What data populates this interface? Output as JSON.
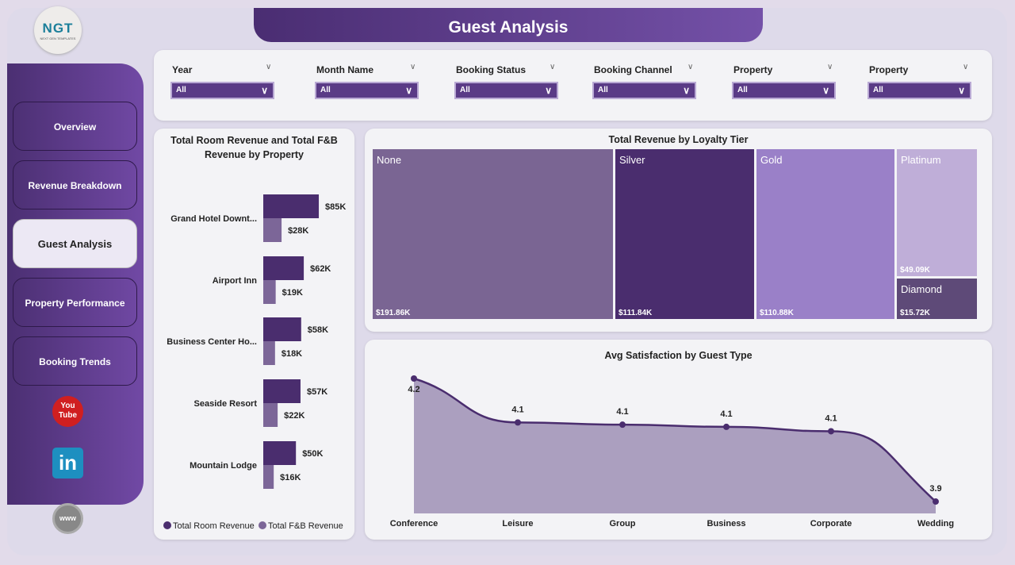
{
  "header": {
    "title": "Guest Analysis",
    "logo_text": "NGT",
    "logo_sub": "NEXT GEN TEMPLATES"
  },
  "sidebar": {
    "items": [
      {
        "label": "Overview",
        "active": false
      },
      {
        "label": "Revenue Breakdown",
        "active": false
      },
      {
        "label": "Guest Analysis",
        "active": true
      },
      {
        "label": "Property Performance",
        "active": false
      },
      {
        "label": "Booking Trends",
        "active": false
      }
    ],
    "social": [
      "youtube-icon",
      "linkedin-icon",
      "globe-www-icon"
    ]
  },
  "filters": [
    {
      "label": "Year",
      "value": "All"
    },
    {
      "label": "Month Name",
      "value": "All"
    },
    {
      "label": "Booking Status",
      "value": "All"
    },
    {
      "label": "Booking Channel",
      "value": "All"
    },
    {
      "label": "Property",
      "value": "All"
    },
    {
      "label": "Property",
      "value": "All"
    }
  ],
  "colors": {
    "primary": "#4a2d6e",
    "secondary": "#7c6698",
    "accent": "#5a3b86"
  },
  "chart_data": [
    {
      "type": "bar",
      "orientation": "horizontal",
      "title": "Total Room Revenue and Total F&B Revenue by Property",
      "categories": [
        "Grand Hotel Downt...",
        "Airport Inn",
        "Business Center Ho...",
        "Seaside Resort",
        "Mountain Lodge"
      ],
      "series": [
        {
          "name": "Total Room Revenue",
          "values": [
            85,
            62,
            58,
            57,
            50
          ],
          "labels": [
            "$85K",
            "$62K",
            "$58K",
            "$57K",
            "$50K"
          ],
          "color": "#4a2d6e"
        },
        {
          "name": "Total F&B Revenue",
          "values": [
            28,
            19,
            18,
            22,
            16
          ],
          "labels": [
            "$28K",
            "$19K",
            "$18K",
            "$22K",
            "$16K"
          ],
          "color": "#7c6698"
        }
      ],
      "unit": "$K",
      "legend": "bottom-left"
    },
    {
      "type": "treemap",
      "title": "Total Revenue by Loyalty Tier",
      "items": [
        {
          "name": "None",
          "value": 191.86,
          "label": "$191.86K",
          "color": "#7a6593"
        },
        {
          "name": "Silver",
          "value": 111.84,
          "label": "$111.84K",
          "color": "#4a2d6e"
        },
        {
          "name": "Gold",
          "value": 110.88,
          "label": "$110.88K",
          "color": "#9a80c8"
        },
        {
          "name": "Platinum",
          "value": 49.09,
          "label": "$49.09K",
          "color": "#bfaed8"
        },
        {
          "name": "Diamond",
          "value": 15.72,
          "label": "$15.72K",
          "color": "#5e4a78"
        }
      ]
    },
    {
      "type": "area",
      "title": "Avg Satisfaction by Guest Type",
      "categories": [
        "Conference",
        "Leisure",
        "Group",
        "Business",
        "Corporate",
        "Wedding"
      ],
      "values": [
        4.18,
        4.08,
        4.075,
        4.07,
        4.06,
        3.9
      ],
      "labels": [
        "4.2",
        "4.1",
        "4.1",
        "4.1",
        "4.1",
        "3.9"
      ],
      "ylim": [
        3.873,
        4.18
      ],
      "line_color": "#4a2d6e",
      "fill_color": "#ab9fbf"
    }
  ]
}
